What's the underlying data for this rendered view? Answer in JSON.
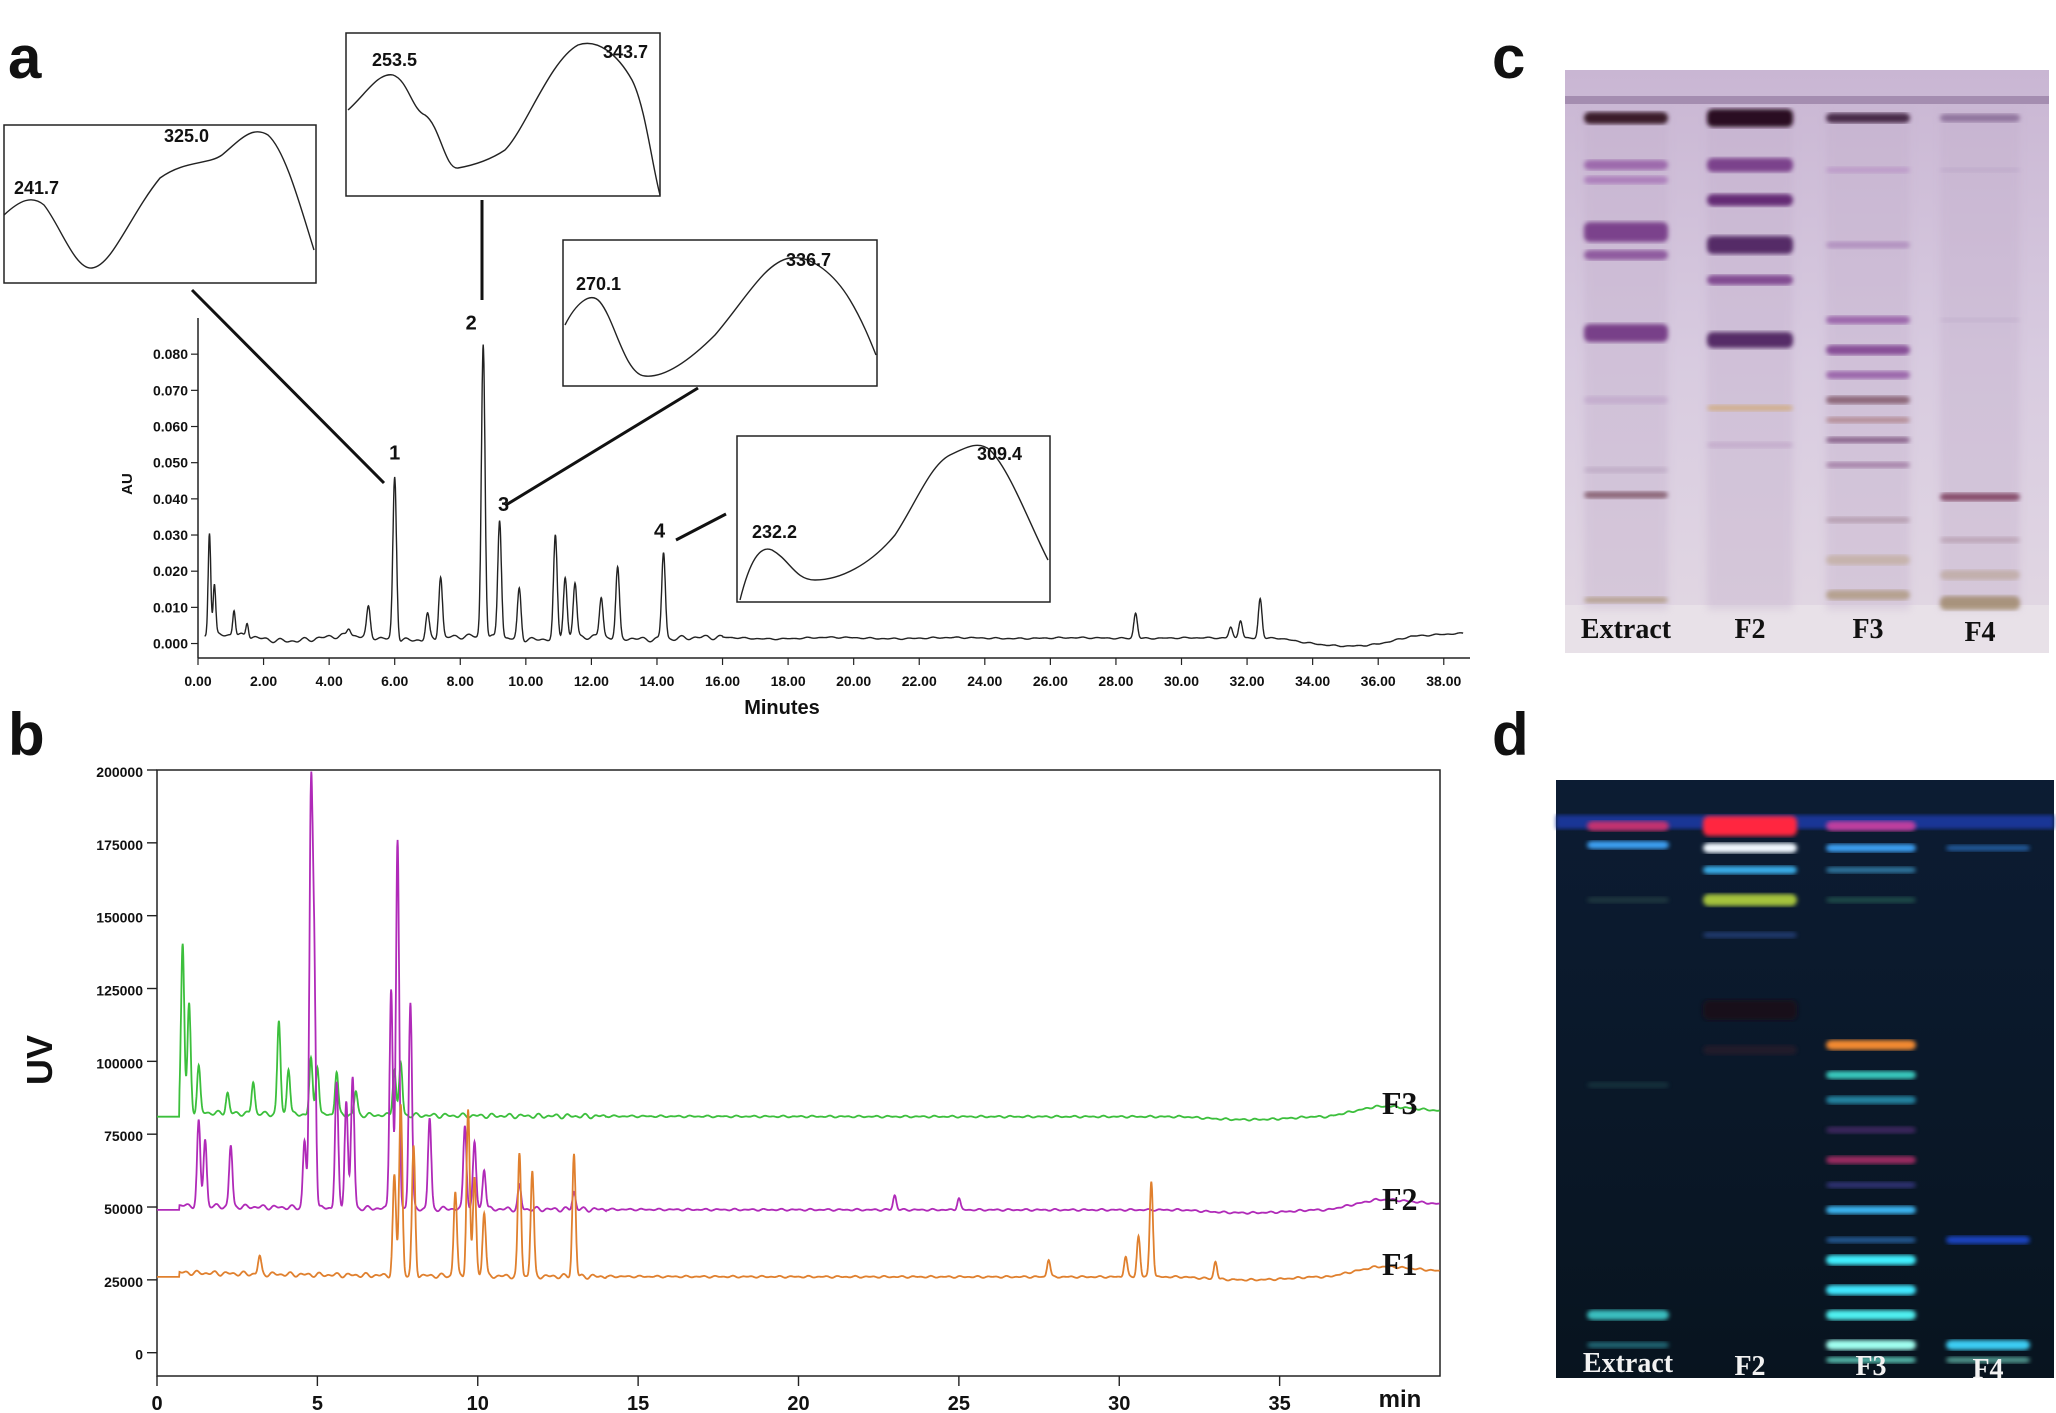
{
  "panels": {
    "a": "a",
    "b": "b",
    "c": "c",
    "d": "d"
  },
  "chart_data": [
    {
      "type": "line",
      "panel": "a",
      "title": "",
      "xlabel": "Minutes",
      "ylabel": "AU",
      "xlim": [
        0,
        38.8
      ],
      "ylim": [
        -0.004,
        0.09
      ],
      "xticks": [
        "0.00",
        "2.00",
        "4.00",
        "6.00",
        "8.00",
        "10.00",
        "12.00",
        "14.00",
        "16.00",
        "18.00",
        "20.00",
        "22.00",
        "24.00",
        "26.00",
        "28.00",
        "30.00",
        "32.00",
        "34.00",
        "36.00",
        "38.00"
      ],
      "yticks": [
        "0.000",
        "0.010",
        "0.020",
        "0.030",
        "0.040",
        "0.050",
        "0.060",
        "0.070",
        "0.080"
      ],
      "peaks": [
        {
          "label": "1",
          "x": 6.0,
          "y": 0.047
        },
        {
          "label": "2",
          "x": 8.7,
          "y": 0.083
        },
        {
          "label": "3",
          "x": 9.2,
          "y": 0.035
        },
        {
          "label": "4",
          "x": 14.2,
          "y": 0.026
        }
      ],
      "minor_peaks": [
        {
          "x": 0.35,
          "y": 0.031
        },
        {
          "x": 0.5,
          "y": 0.016
        },
        {
          "x": 1.1,
          "y": 0.009
        },
        {
          "x": 1.5,
          "y": 0.006
        },
        {
          "x": 4.6,
          "y": 0.004
        },
        {
          "x": 5.2,
          "y": 0.01
        },
        {
          "x": 7.0,
          "y": 0.009
        },
        {
          "x": 7.4,
          "y": 0.019
        },
        {
          "x": 9.8,
          "y": 0.016
        },
        {
          "x": 10.9,
          "y": 0.03
        },
        {
          "x": 11.2,
          "y": 0.019
        },
        {
          "x": 11.5,
          "y": 0.017
        },
        {
          "x": 12.3,
          "y": 0.013
        },
        {
          "x": 12.8,
          "y": 0.021
        },
        {
          "x": 28.6,
          "y": 0.009
        },
        {
          "x": 31.5,
          "y": 0.005
        },
        {
          "x": 31.8,
          "y": 0.007
        },
        {
          "x": 32.4,
          "y": 0.013
        }
      ],
      "insets": [
        {
          "peak": "1",
          "maxima": [
            "241.7",
            "325.0"
          ]
        },
        {
          "peak": "2",
          "maxima": [
            "253.5",
            "343.7"
          ]
        },
        {
          "peak": "3",
          "maxima": [
            "270.1",
            "336.7"
          ]
        },
        {
          "peak": "4",
          "maxima": [
            "232.2",
            "309.4"
          ]
        }
      ]
    },
    {
      "type": "line",
      "panel": "b",
      "title": "",
      "xlabel": "min",
      "ylabel": "UV",
      "xlim": [
        0,
        40
      ],
      "ylim": [
        -8000,
        200000
      ],
      "xticks": [
        "0",
        "5",
        "10",
        "15",
        "20",
        "25",
        "30",
        "35"
      ],
      "yticks": [
        "0",
        "25000",
        "50000",
        "75000",
        "100000",
        "125000",
        "150000",
        "175000",
        "200000"
      ],
      "series": [
        {
          "name": "F3",
          "color": "#3cbf3c",
          "baseline": 81000,
          "peaks": [
            {
              "x": 0.8,
              "y": 139000
            },
            {
              "x": 1.0,
              "y": 118000
            },
            {
              "x": 1.3,
              "y": 97000
            },
            {
              "x": 2.2,
              "y": 88000
            },
            {
              "x": 3.0,
              "y": 92000
            },
            {
              "x": 3.8,
              "y": 113000
            },
            {
              "x": 4.1,
              "y": 97000
            },
            {
              "x": 4.8,
              "y": 100000
            },
            {
              "x": 5.0,
              "y": 98000
            },
            {
              "x": 5.6,
              "y": 96000
            },
            {
              "x": 6.2,
              "y": 89000
            },
            {
              "x": 7.4,
              "y": 97000
            },
            {
              "x": 7.6,
              "y": 99000
            }
          ]
        },
        {
          "name": "F2",
          "color": "#b02ab8",
          "baseline": 49000,
          "peaks": [
            {
              "x": 1.3,
              "y": 78000
            },
            {
              "x": 1.5,
              "y": 72000
            },
            {
              "x": 2.3,
              "y": 70000
            },
            {
              "x": 4.6,
              "y": 72000
            },
            {
              "x": 4.8,
              "y": 185000
            },
            {
              "x": 4.9,
              "y": 130000
            },
            {
              "x": 5.6,
              "y": 92000
            },
            {
              "x": 5.9,
              "y": 86000
            },
            {
              "x": 6.1,
              "y": 94000
            },
            {
              "x": 7.3,
              "y": 125000
            },
            {
              "x": 7.5,
              "y": 175000
            },
            {
              "x": 7.9,
              "y": 120000
            },
            {
              "x": 8.5,
              "y": 80000
            },
            {
              "x": 9.6,
              "y": 78000
            },
            {
              "x": 9.9,
              "y": 72000
            },
            {
              "x": 10.2,
              "y": 63000
            },
            {
              "x": 11.3,
              "y": 57000
            },
            {
              "x": 13.0,
              "y": 55000
            },
            {
              "x": 23.0,
              "y": 54000
            },
            {
              "x": 25.0,
              "y": 53000
            }
          ]
        },
        {
          "name": "F1",
          "color": "#e0802e",
          "baseline": 26000,
          "peaks": [
            {
              "x": 3.2,
              "y": 32000
            },
            {
              "x": 7.4,
              "y": 60000
            },
            {
              "x": 7.6,
              "y": 85000
            },
            {
              "x": 8.0,
              "y": 70000
            },
            {
              "x": 9.3,
              "y": 55000
            },
            {
              "x": 9.7,
              "y": 83000
            },
            {
              "x": 9.9,
              "y": 60000
            },
            {
              "x": 10.2,
              "y": 48000
            },
            {
              "x": 11.3,
              "y": 68000
            },
            {
              "x": 11.7,
              "y": 62000
            },
            {
              "x": 13.0,
              "y": 68000
            },
            {
              "x": 27.8,
              "y": 32000
            },
            {
              "x": 30.2,
              "y": 33000
            },
            {
              "x": 30.6,
              "y": 40000
            },
            {
              "x": 31.0,
              "y": 59000
            },
            {
              "x": 33.0,
              "y": 32000
            }
          ]
        }
      ]
    }
  ],
  "tlc": [
    {
      "panel": "c",
      "lanes": [
        "Extract",
        "F2",
        "F3",
        "F4"
      ]
    },
    {
      "panel": "d",
      "lanes": [
        "Extract",
        "F2",
        "F3",
        "F4"
      ]
    }
  ],
  "colors": {
    "tlc_c_background": "#cdbbd4",
    "tlc_d_background": "#0a1826",
    "band_purple": "#7a3a8c",
    "band_cyan": "#35d6e8",
    "band_red": "#ff3050"
  }
}
